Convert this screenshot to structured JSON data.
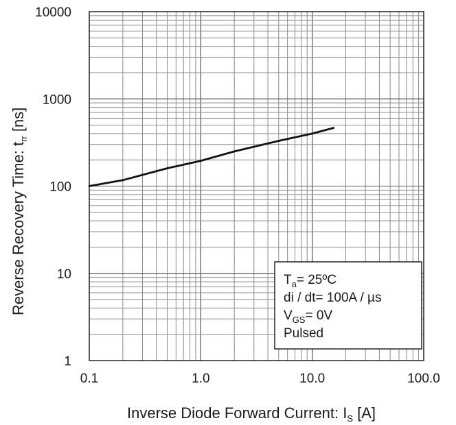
{
  "chart_data": {
    "type": "line",
    "title": "",
    "xscale": "log",
    "yscale": "log",
    "xlim": [
      0.1,
      100.0
    ],
    "ylim": [
      1,
      10000
    ],
    "grid": true,
    "x_ticks": [
      "0.1",
      "1.0",
      "10.0",
      "100.0"
    ],
    "y_ticks": [
      "1",
      "10",
      "100",
      "1000",
      "10000"
    ],
    "xlabel": {
      "main": "Inverse Diode Forward Current: I",
      "sub": "S",
      "unit": " [A]"
    },
    "ylabel": {
      "main": "Reverse Recovery Time: t",
      "sub": "rr",
      "unit": " [ns]"
    },
    "series": [
      {
        "x": [
          0.1,
          0.2,
          0.5,
          1.0,
          2.0,
          5.0,
          10.0,
          15.5
        ],
        "y": [
          100,
          117,
          160,
          195,
          250,
          330,
          400,
          465
        ],
        "color": "#111111"
      }
    ],
    "conditions": {
      "ta": {
        "main": "T",
        "sub": "a",
        "rest": "= 25ºC"
      },
      "didt": "di / dt= 100A / µs",
      "vgs": {
        "main": "V",
        "sub": "GS",
        "rest": "= 0V"
      },
      "pulsed": "Pulsed"
    }
  }
}
